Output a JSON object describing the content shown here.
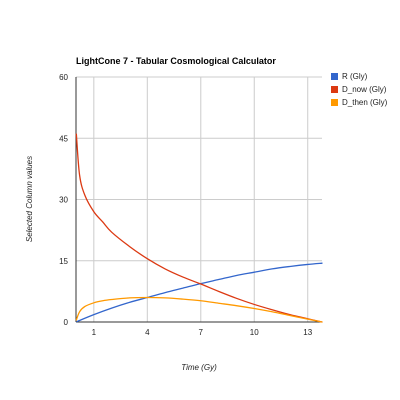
{
  "chart_data": {
    "type": "line",
    "title": "LightCone 7 - Tabular Cosmological Calculator",
    "xlabel": "Time (Gy)",
    "ylabel": "Selected Column values",
    "xlim": [
      0,
      13.8
    ],
    "ylim": [
      0,
      60
    ],
    "xticks": [
      1,
      4,
      7,
      10,
      13
    ],
    "yticks": [
      0,
      15,
      30,
      45,
      60
    ],
    "grid": true,
    "legend_position": "right",
    "series": [
      {
        "name": "R (Gly)",
        "color": "#3366cc",
        "x": [
          0.05,
          1,
          2,
          3,
          4,
          5,
          6,
          7,
          8,
          9,
          10,
          11,
          12,
          13,
          13.8
        ],
        "y": [
          0.1,
          1.8,
          3.4,
          4.8,
          6.0,
          7.2,
          8.3,
          9.4,
          10.4,
          11.4,
          12.2,
          13.0,
          13.6,
          14.1,
          14.4
        ]
      },
      {
        "name": "D_now (Gly)",
        "color": "#dc3912",
        "x": [
          0.02,
          0.2,
          0.5,
          1,
          1.5,
          2,
          3,
          4,
          5,
          6,
          7,
          8,
          9,
          10,
          11,
          12,
          13,
          13.8
        ],
        "y": [
          46,
          36,
          31,
          27,
          24.5,
          22,
          18.5,
          15.5,
          13,
          11,
          9.3,
          7.5,
          5.8,
          4.3,
          3.0,
          1.8,
          0.8,
          0
        ]
      },
      {
        "name": "D_then (Gly)",
        "color": "#ff9900",
        "x": [
          0.02,
          0.2,
          0.5,
          1,
          1.5,
          2,
          3,
          4,
          5,
          6,
          7,
          8,
          9,
          10,
          11,
          12,
          13,
          13.8
        ],
        "y": [
          0.5,
          2.5,
          3.8,
          4.7,
          5.2,
          5.5,
          5.9,
          6.0,
          5.9,
          5.6,
          5.2,
          4.6,
          4.0,
          3.3,
          2.5,
          1.6,
          0.7,
          0
        ]
      }
    ]
  }
}
